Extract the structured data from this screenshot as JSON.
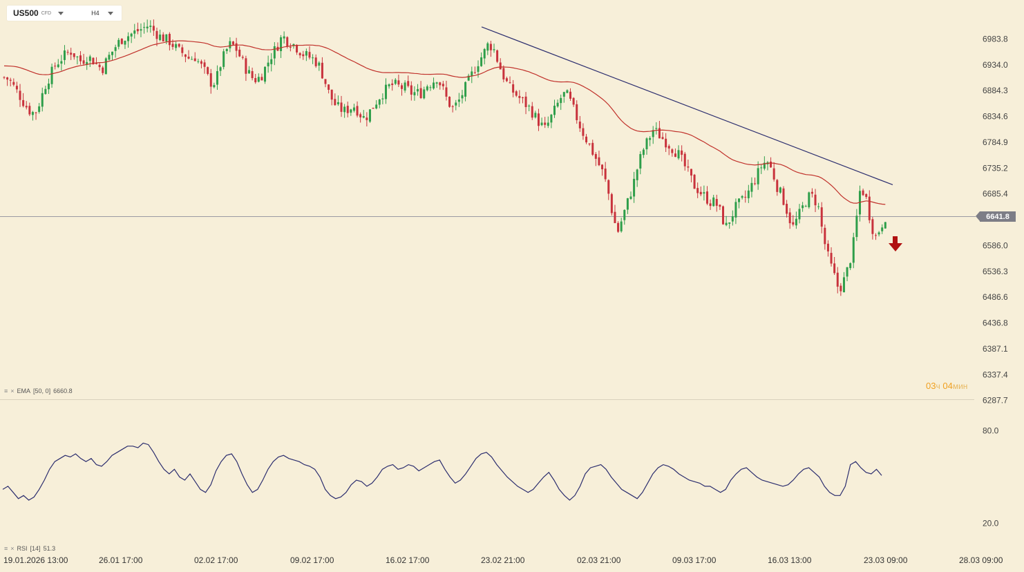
{
  "toolbar": {
    "symbol": "US500",
    "instrument_type": "CFD",
    "timeframe": "H4"
  },
  "legends": {
    "ema_name": "EMA",
    "ema_params": "[50, 0]",
    "ema_value": "6660.8",
    "rsi_name": "RSI",
    "rsi_params": "[14]",
    "rsi_value": "51.3"
  },
  "timer": {
    "hours": "03",
    "hours_unit": "ч",
    "minutes": "04",
    "minutes_unit": "мин"
  },
  "icons": {
    "legend_menu": "hamburger-icon",
    "legend_close": "close-icon",
    "signal": "down-arrow-icon"
  },
  "colors": {
    "bull": "#2e9e4a",
    "bear": "#c8323c",
    "ema": "#c0302a",
    "rsi": "#2b2d6e",
    "trendline": "#2b2d6e",
    "signal": "#b01010",
    "price_tag": "#7d7d86"
  },
  "chart_data": {
    "type": "candlestick",
    "symbol": "US500",
    "timeframe": "H4",
    "price_axis_ticks": [
      "6983.8",
      "6934.0",
      "6884.3",
      "6834.6",
      "6784.9",
      "6735.2",
      "6685.4",
      "6586.0",
      "6536.3",
      "6486.6",
      "6436.8",
      "6387.1",
      "6337.4",
      "6287.7"
    ],
    "current_price": "6641.8",
    "time_axis_ticks": [
      {
        "date": "19.01.2026",
        "time": "13:00"
      },
      {
        "date": "26.01",
        "time": "17:00"
      },
      {
        "date": "02.02",
        "time": "17:00"
      },
      {
        "date": "09.02",
        "time": "17:00"
      },
      {
        "date": "16.02",
        "time": "17:00"
      },
      {
        "date": "23.02",
        "time": "21:00"
      },
      {
        "date": "02.03",
        "time": "21:00"
      },
      {
        "date": "09.03",
        "time": "17:00"
      },
      {
        "date": "16.03",
        "time": "13:00"
      },
      {
        "date": "23.03",
        "time": "09:00"
      },
      {
        "date": "28.03",
        "time": "09:00"
      }
    ],
    "price_series_close": [
      6910,
      6905,
      6890,
      6875,
      6858,
      6845,
      6840,
      6865,
      6895,
      6915,
      6935,
      6945,
      6955,
      6960,
      6950,
      6940,
      6950,
      6945,
      6935,
      6925,
      6945,
      6960,
      6975,
      6985,
      6990,
      6995,
      7000,
      7005,
      7010,
      7000,
      6990,
      6985,
      6980,
      6970,
      6960,
      6955,
      6945,
      6950,
      6935,
      6920,
      6900,
      6900,
      6935,
      6960,
      6975,
      6965,
      6945,
      6925,
      6910,
      6905,
      6915,
      6935,
      6955,
      6970,
      6990,
      6980,
      6975,
      6965,
      6955,
      6950,
      6945,
      6935,
      6910,
      6880,
      6860,
      6850,
      6845,
      6850,
      6855,
      6840,
      6830,
      6845,
      6860,
      6875,
      6885,
      6895,
      6895,
      6890,
      6890,
      6880,
      6880,
      6880,
      6895,
      6900,
      6910,
      6890,
      6865,
      6850,
      6860,
      6880,
      6900,
      6920,
      6940,
      6955,
      6975,
      6965,
      6935,
      6910,
      6890,
      6880,
      6870,
      6860,
      6850,
      6835,
      6820,
      6810,
      6830,
      6850,
      6870,
      6880,
      6860,
      6835,
      6810,
      6790,
      6770,
      6750,
      6730,
      6700,
      6650,
      6610,
      6640,
      6670,
      6700,
      6740,
      6770,
      6790,
      6810,
      6800,
      6790,
      6780,
      6770,
      6760,
      6740,
      6720,
      6700,
      6690,
      6680,
      6670,
      6670,
      6650,
      6620,
      6640,
      6660,
      6670,
      6680,
      6700,
      6720,
      6740,
      6750,
      6730,
      6700,
      6680,
      6650,
      6620,
      6640,
      6660,
      6680,
      6680,
      6660,
      6600,
      6560,
      6530,
      6500,
      6520,
      6550,
      6600,
      6690,
      6690,
      6640,
      6600,
      6620,
      6642
    ],
    "ema": {
      "period": 50,
      "shift": 0,
      "last_value": 6660.8
    },
    "trendline": {
      "from": {
        "time_index": 143,
        "price": 7007
      },
      "to": {
        "time_index": 264,
        "price": 6703
      }
    },
    "signal": "down",
    "rsi": {
      "period": 14,
      "last_value": 51.3,
      "levels": [
        80.0,
        20.0
      ],
      "values": [
        42,
        44,
        40,
        36,
        38,
        35,
        37,
        42,
        48,
        55,
        60,
        62,
        64,
        63,
        65,
        62,
        60,
        62,
        58,
        57,
        60,
        64,
        66,
        68,
        70,
        70,
        69,
        72,
        71,
        66,
        60,
        55,
        52,
        55,
        50,
        48,
        52,
        47,
        42,
        40,
        45,
        54,
        60,
        64,
        65,
        60,
        52,
        45,
        40,
        42,
        48,
        55,
        60,
        63,
        64,
        62,
        61,
        60,
        58,
        57,
        55,
        50,
        42,
        38,
        36,
        37,
        40,
        45,
        48,
        47,
        44,
        46,
        50,
        55,
        57,
        58,
        55,
        56,
        58,
        57,
        54,
        56,
        58,
        60,
        61,
        55,
        50,
        46,
        48,
        52,
        57,
        62,
        65,
        66,
        63,
        58,
        54,
        50,
        47,
        44,
        42,
        40,
        42,
        46,
        50,
        53,
        48,
        42,
        38,
        35,
        38,
        44,
        52,
        56,
        57,
        58,
        55,
        50,
        46,
        42,
        40,
        38,
        36,
        40,
        46,
        52,
        56,
        58,
        57,
        55,
        52,
        50,
        48,
        47,
        46,
        44,
        44,
        42,
        40,
        42,
        48,
        52,
        55,
        56,
        53,
        50,
        48,
        47,
        46,
        45,
        44,
        45,
        48,
        52,
        55,
        56,
        53,
        50,
        44,
        40,
        38,
        38,
        44,
        58,
        60,
        56,
        53,
        52,
        55,
        51
      ]
    }
  }
}
